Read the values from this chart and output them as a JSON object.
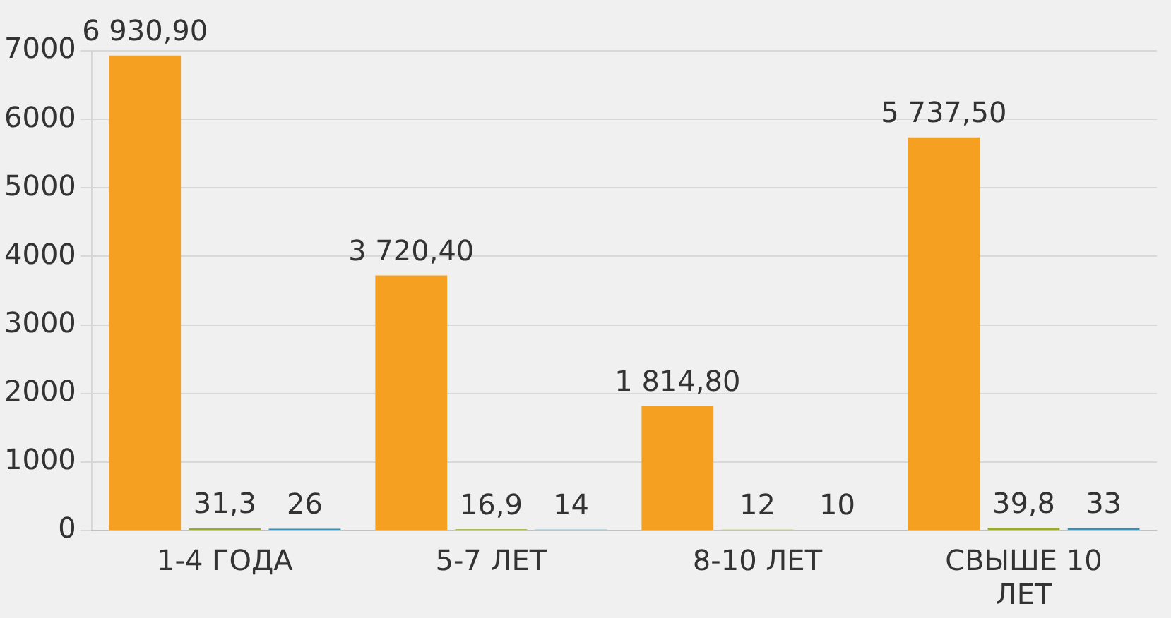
{
  "chart_data": {
    "type": "bar",
    "categories": [
      "1-4 ГОДА",
      "5-7 ЛЕТ",
      "8-10 ЛЕТ",
      "СВЫШЕ 10 ЛЕТ"
    ],
    "series": [
      {
        "color": "#f5a020",
        "values": [
          6930.9,
          3720.4,
          1814.8,
          5737.5
        ],
        "value_labels": [
          "6 930,90",
          "3 720,40",
          "1 814,80",
          "5 737,50"
        ]
      },
      {
        "color": "#9aaa2a",
        "values": [
          31.3,
          16.9,
          12,
          39.8
        ],
        "value_labels": [
          "31,3",
          "16,9",
          "12",
          "39,8"
        ]
      },
      {
        "color": "#3a8fb5",
        "values": [
          26,
          14,
          10,
          33
        ],
        "value_labels": [
          "26",
          "14",
          "10",
          "33"
        ]
      }
    ],
    "ylim": [
      0,
      7000
    ],
    "yticks": [
      0,
      1000,
      2000,
      3000,
      4000,
      5000,
      6000,
      7000
    ],
    "grid": "y",
    "legend": false
  }
}
